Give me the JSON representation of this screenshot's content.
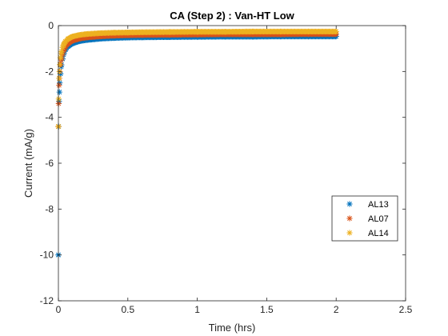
{
  "chart_data": {
    "type": "scatter",
    "title": "CA (Step 2) : Van-HT Low",
    "xlabel": "Time (hrs)",
    "ylabel": "Current (mA/g)",
    "xlim": [
      0,
      2.5
    ],
    "ylim": [
      -12,
      0
    ],
    "xticks": [
      0,
      0.5,
      1,
      1.5,
      2,
      2.5
    ],
    "xtick_labels": [
      "0",
      "0.5",
      "1",
      "1.5",
      "2",
      "2.5"
    ],
    "yticks": [
      -12,
      -10,
      -8,
      -6,
      -4,
      -2,
      0
    ],
    "ytick_labels": [
      "-12",
      "-10",
      "-8",
      "-6",
      "-4",
      "-2",
      "0"
    ],
    "grid": false,
    "legend_position": "right",
    "marker": "asterisk",
    "series": [
      {
        "name": "AL13",
        "color": "#0072BD",
        "x": [
          0.0,
          0.002,
          0.005,
          0.01,
          0.015,
          0.02,
          0.03,
          0.04,
          0.05,
          0.07,
          0.1,
          0.15,
          0.2,
          0.3,
          0.4,
          0.5,
          0.6,
          0.8,
          1.0,
          1.2,
          1.4,
          1.6,
          1.8,
          2.0
        ],
        "y": [
          -10.0,
          -4.4,
          -3.3,
          -2.5,
          -2.1,
          -1.8,
          -1.45,
          -1.2,
          -1.05,
          -0.9,
          -0.78,
          -0.68,
          -0.63,
          -0.57,
          -0.54,
          -0.52,
          -0.51,
          -0.5,
          -0.49,
          -0.48,
          -0.48,
          -0.47,
          -0.47,
          -0.47
        ]
      },
      {
        "name": "AL07",
        "color": "#D95319",
        "x": [
          0.0,
          0.002,
          0.005,
          0.01,
          0.015,
          0.02,
          0.03,
          0.04,
          0.05,
          0.07,
          0.1,
          0.15,
          0.2,
          0.3,
          0.4,
          0.5,
          0.6,
          0.8,
          1.0,
          1.2,
          1.4,
          1.6,
          1.8,
          2.0
        ],
        "y": [
          -4.4,
          -3.4,
          -2.6,
          -2.0,
          -1.7,
          -1.5,
          -1.25,
          -1.05,
          -0.92,
          -0.78,
          -0.66,
          -0.57,
          -0.52,
          -0.47,
          -0.44,
          -0.42,
          -0.41,
          -0.4,
          -0.39,
          -0.38,
          -0.38,
          -0.38,
          -0.37,
          -0.37
        ]
      },
      {
        "name": "AL14",
        "color": "#EDB120",
        "x": [
          0.0,
          0.002,
          0.005,
          0.01,
          0.015,
          0.02,
          0.03,
          0.04,
          0.05,
          0.07,
          0.1,
          0.15,
          0.2,
          0.3,
          0.4,
          0.5,
          0.6,
          0.8,
          1.0,
          1.2,
          1.4,
          1.6,
          1.8,
          2.0
        ],
        "y": [
          -4.4,
          -3.2,
          -2.3,
          -1.7,
          -1.4,
          -1.2,
          -0.95,
          -0.8,
          -0.7,
          -0.58,
          -0.48,
          -0.41,
          -0.37,
          -0.33,
          -0.31,
          -0.3,
          -0.29,
          -0.28,
          -0.27,
          -0.27,
          -0.26,
          -0.26,
          -0.26,
          -0.26
        ]
      }
    ]
  }
}
